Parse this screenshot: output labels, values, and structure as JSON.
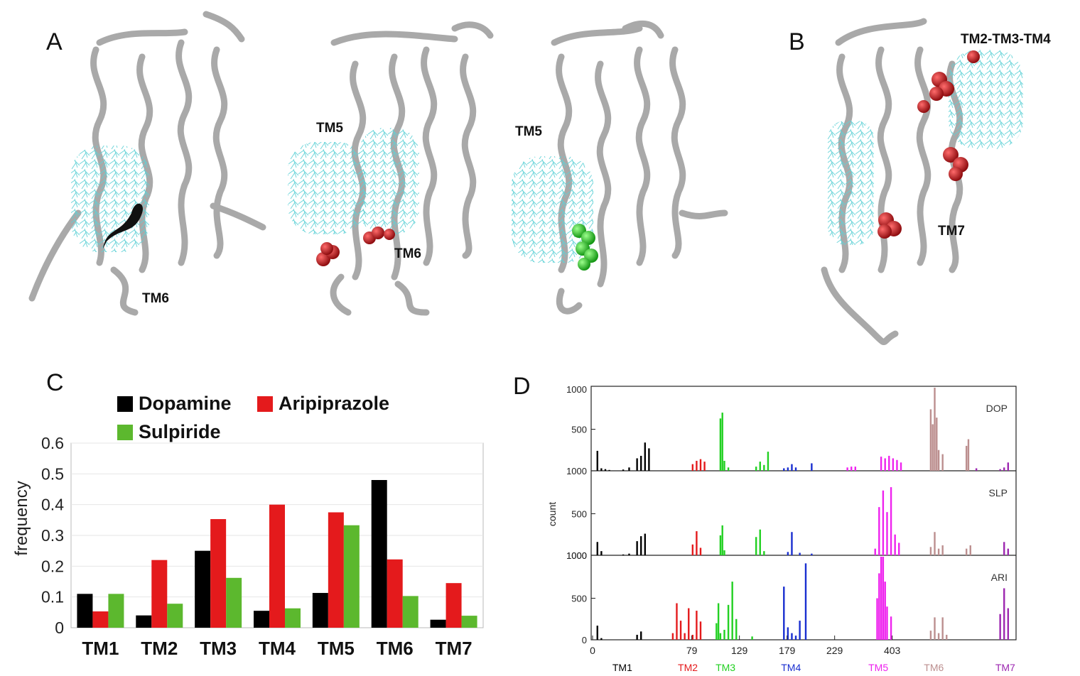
{
  "panel_a": {
    "letter": "A",
    "labels": [
      "TM6",
      "TM5",
      "TM6",
      "TM5"
    ]
  },
  "panel_b": {
    "letter": "B",
    "labels": [
      "TM2-TM3-TM4",
      "TM7"
    ]
  },
  "colors": {
    "dopamine": "#000000",
    "aripiprazole": "#e41a1c",
    "sulpiride": "#5cb82e",
    "ligand_cloud": "#5fd1d6",
    "protein": "#b8b8b8",
    "contact_red": "#c8161b",
    "contact_green": "#2ec52e",
    "contact_black": "#111111"
  },
  "chart_data": [
    {
      "panel": "C",
      "type": "bar",
      "title": "",
      "xlabel": "",
      "ylabel": "frequency",
      "categories": [
        "TM1",
        "TM2",
        "TM3",
        "TM4",
        "TM5",
        "TM6",
        "TM7"
      ],
      "ylim": [
        0,
        0.6
      ],
      "yticks": [
        "0",
        "0.1",
        "0.2",
        "0.3",
        "0.4",
        "0.5",
        "0.6"
      ],
      "legend": "top",
      "series": [
        {
          "name": "Dopamine",
          "color": "#000000",
          "values": [
            0.11,
            0.04,
            0.25,
            0.055,
            0.113,
            0.48,
            0.026
          ]
        },
        {
          "name": "Aripiprazole",
          "color": "#e41a1c",
          "values": [
            0.053,
            0.22,
            0.353,
            0.4,
            0.375,
            0.222,
            0.145
          ]
        },
        {
          "name": "Sulpiride",
          "color": "#5cb82e",
          "values": [
            0.11,
            0.078,
            0.162,
            0.063,
            0.333,
            0.103,
            0.039
          ]
        }
      ]
    },
    {
      "panel": "D",
      "type": "bar",
      "ylabel": "count",
      "xticks": [
        "0",
        "79",
        "129",
        "179",
        "229",
        "403"
      ],
      "row_yticks": [
        "1000",
        "500"
      ],
      "bottom_yticks": [
        "0",
        "500",
        "1000"
      ],
      "segments": [
        {
          "name": "TM1",
          "color": "#000000"
        },
        {
          "name": "TM2",
          "color": "#e41a1c"
        },
        {
          "name": "TM3",
          "color": "#22d022"
        },
        {
          "name": "TM4",
          "color": "#1a2fd0"
        },
        {
          "name": "TM5",
          "color": "#ee22ee"
        },
        {
          "name": "TM6",
          "color": "#bc8f8f"
        },
        {
          "name": "TM7",
          "color": "#9c27b0"
        }
      ],
      "rows": [
        {
          "name": "DOP",
          "bars": [
            [
              2,
              240,
              "TM1"
            ],
            [
              4,
              30,
              "TM1"
            ],
            [
              6,
              20,
              "TM1"
            ],
            [
              8,
              10,
              "TM1"
            ],
            [
              15,
              15,
              "TM1"
            ],
            [
              18,
              40,
              "TM1"
            ],
            [
              22,
              150,
              "TM1"
            ],
            [
              24,
              180,
              "TM1"
            ],
            [
              26,
              340,
              "TM1"
            ],
            [
              28,
              270,
              "TM1"
            ],
            [
              50,
              80,
              "TM2"
            ],
            [
              52,
              120,
              "TM2"
            ],
            [
              54,
              140,
              "TM2"
            ],
            [
              56,
              110,
              "TM2"
            ],
            [
              64,
              630,
              "TM3"
            ],
            [
              65,
              700,
              "TM3"
            ],
            [
              66,
              120,
              "TM3"
            ],
            [
              68,
              40,
              "TM3"
            ],
            [
              82,
              50,
              "TM3"
            ],
            [
              84,
              110,
              "TM3"
            ],
            [
              86,
              70,
              "TM3"
            ],
            [
              88,
              230,
              "TM3"
            ],
            [
              96,
              30,
              "TM4"
            ],
            [
              98,
              40,
              "TM4"
            ],
            [
              100,
              80,
              "TM4"
            ],
            [
              102,
              40,
              "TM4"
            ],
            [
              110,
              90,
              "TM4"
            ],
            [
              128,
              40,
              "TM5"
            ],
            [
              130,
              50,
              "TM5"
            ],
            [
              132,
              50,
              "TM5"
            ],
            [
              145,
              170,
              "TM5"
            ],
            [
              147,
              150,
              "TM5"
            ],
            [
              149,
              180,
              "TM5"
            ],
            [
              151,
              150,
              "TM5"
            ],
            [
              153,
              130,
              "TM5"
            ],
            [
              155,
              100,
              "TM5"
            ],
            [
              170,
              740,
              "TM6"
            ],
            [
              171,
              560,
              "TM6"
            ],
            [
              172,
              1000,
              "TM6"
            ],
            [
              173,
              640,
              "TM6"
            ],
            [
              174,
              250,
              "TM6"
            ],
            [
              176,
              200,
              "TM6"
            ],
            [
              188,
              300,
              "TM6"
            ],
            [
              189,
              380,
              "TM6"
            ],
            [
              193,
              30,
              "TM7"
            ],
            [
              205,
              20,
              "TM7"
            ],
            [
              207,
              40,
              "TM7"
            ],
            [
              209,
              100,
              "TM7"
            ]
          ]
        },
        {
          "name": "SLP",
          "bars": [
            [
              2,
              160,
              "TM1"
            ],
            [
              4,
              50,
              "TM1"
            ],
            [
              15,
              10,
              "TM1"
            ],
            [
              18,
              20,
              "TM1"
            ],
            [
              22,
              170,
              "TM1"
            ],
            [
              24,
              230,
              "TM1"
            ],
            [
              26,
              260,
              "TM1"
            ],
            [
              50,
              130,
              "TM2"
            ],
            [
              52,
              290,
              "TM2"
            ],
            [
              54,
              90,
              "TM2"
            ],
            [
              64,
              240,
              "TM3"
            ],
            [
              65,
              360,
              "TM3"
            ],
            [
              66,
              60,
              "TM3"
            ],
            [
              82,
              220,
              "TM3"
            ],
            [
              84,
              310,
              "TM3"
            ],
            [
              86,
              50,
              "TM3"
            ],
            [
              98,
              40,
              "TM4"
            ],
            [
              100,
              280,
              "TM4"
            ],
            [
              104,
              30,
              "TM4"
            ],
            [
              110,
              20,
              "TM4"
            ],
            [
              142,
              80,
              "TM5"
            ],
            [
              144,
              580,
              "TM5"
            ],
            [
              146,
              780,
              "TM5"
            ],
            [
              148,
              520,
              "TM5"
            ],
            [
              150,
              820,
              "TM5"
            ],
            [
              152,
              250,
              "TM5"
            ],
            [
              154,
              150,
              "TM5"
            ],
            [
              170,
              100,
              "TM6"
            ],
            [
              172,
              280,
              "TM6"
            ],
            [
              174,
              80,
              "TM6"
            ],
            [
              176,
              120,
              "TM6"
            ],
            [
              188,
              80,
              "TM6"
            ],
            [
              190,
              120,
              "TM6"
            ],
            [
              207,
              160,
              "TM7"
            ],
            [
              209,
              80,
              "TM7"
            ]
          ]
        },
        {
          "name": "ARI",
          "bars": [
            [
              2,
              170,
              "TM1"
            ],
            [
              4,
              20,
              "TM1"
            ],
            [
              22,
              60,
              "TM1"
            ],
            [
              24,
              100,
              "TM1"
            ],
            [
              40,
              80,
              "TM2"
            ],
            [
              42,
              440,
              "TM2"
            ],
            [
              44,
              230,
              "TM2"
            ],
            [
              46,
              80,
              "TM2"
            ],
            [
              48,
              380,
              "TM2"
            ],
            [
              50,
              60,
              "TM2"
            ],
            [
              52,
              350,
              "TM2"
            ],
            [
              54,
              220,
              "TM2"
            ],
            [
              62,
              200,
              "TM3"
            ],
            [
              63,
              440,
              "TM3"
            ],
            [
              64,
              80,
              "TM3"
            ],
            [
              66,
              120,
              "TM3"
            ],
            [
              68,
              420,
              "TM3"
            ],
            [
              70,
              700,
              "TM3"
            ],
            [
              72,
              250,
              "TM3"
            ],
            [
              80,
              40,
              "TM3"
            ],
            [
              96,
              640,
              "TM4"
            ],
            [
              98,
              150,
              "TM4"
            ],
            [
              100,
              80,
              "TM4"
            ],
            [
              102,
              50,
              "TM4"
            ],
            [
              104,
              230,
              "TM4"
            ],
            [
              107,
              920,
              "TM4"
            ],
            [
              143,
              500,
              "TM5"
            ],
            [
              144,
              800,
              "TM5"
            ],
            [
              145,
              1000,
              "TM5"
            ],
            [
              146,
              1000,
              "TM5"
            ],
            [
              147,
              700,
              "TM5"
            ],
            [
              148,
              400,
              "TM5"
            ],
            [
              150,
              280,
              "TM5"
            ],
            [
              170,
              110,
              "TM6"
            ],
            [
              172,
              270,
              "TM6"
            ],
            [
              174,
              80,
              "TM6"
            ],
            [
              176,
              270,
              "TM6"
            ],
            [
              178,
              60,
              "TM6"
            ],
            [
              205,
              310,
              "TM7"
            ],
            [
              207,
              620,
              "TM7"
            ],
            [
              209,
              380,
              "TM7"
            ]
          ]
        }
      ]
    }
  ],
  "panel_c": {
    "letter": "C"
  },
  "panel_d": {
    "letter": "D"
  }
}
